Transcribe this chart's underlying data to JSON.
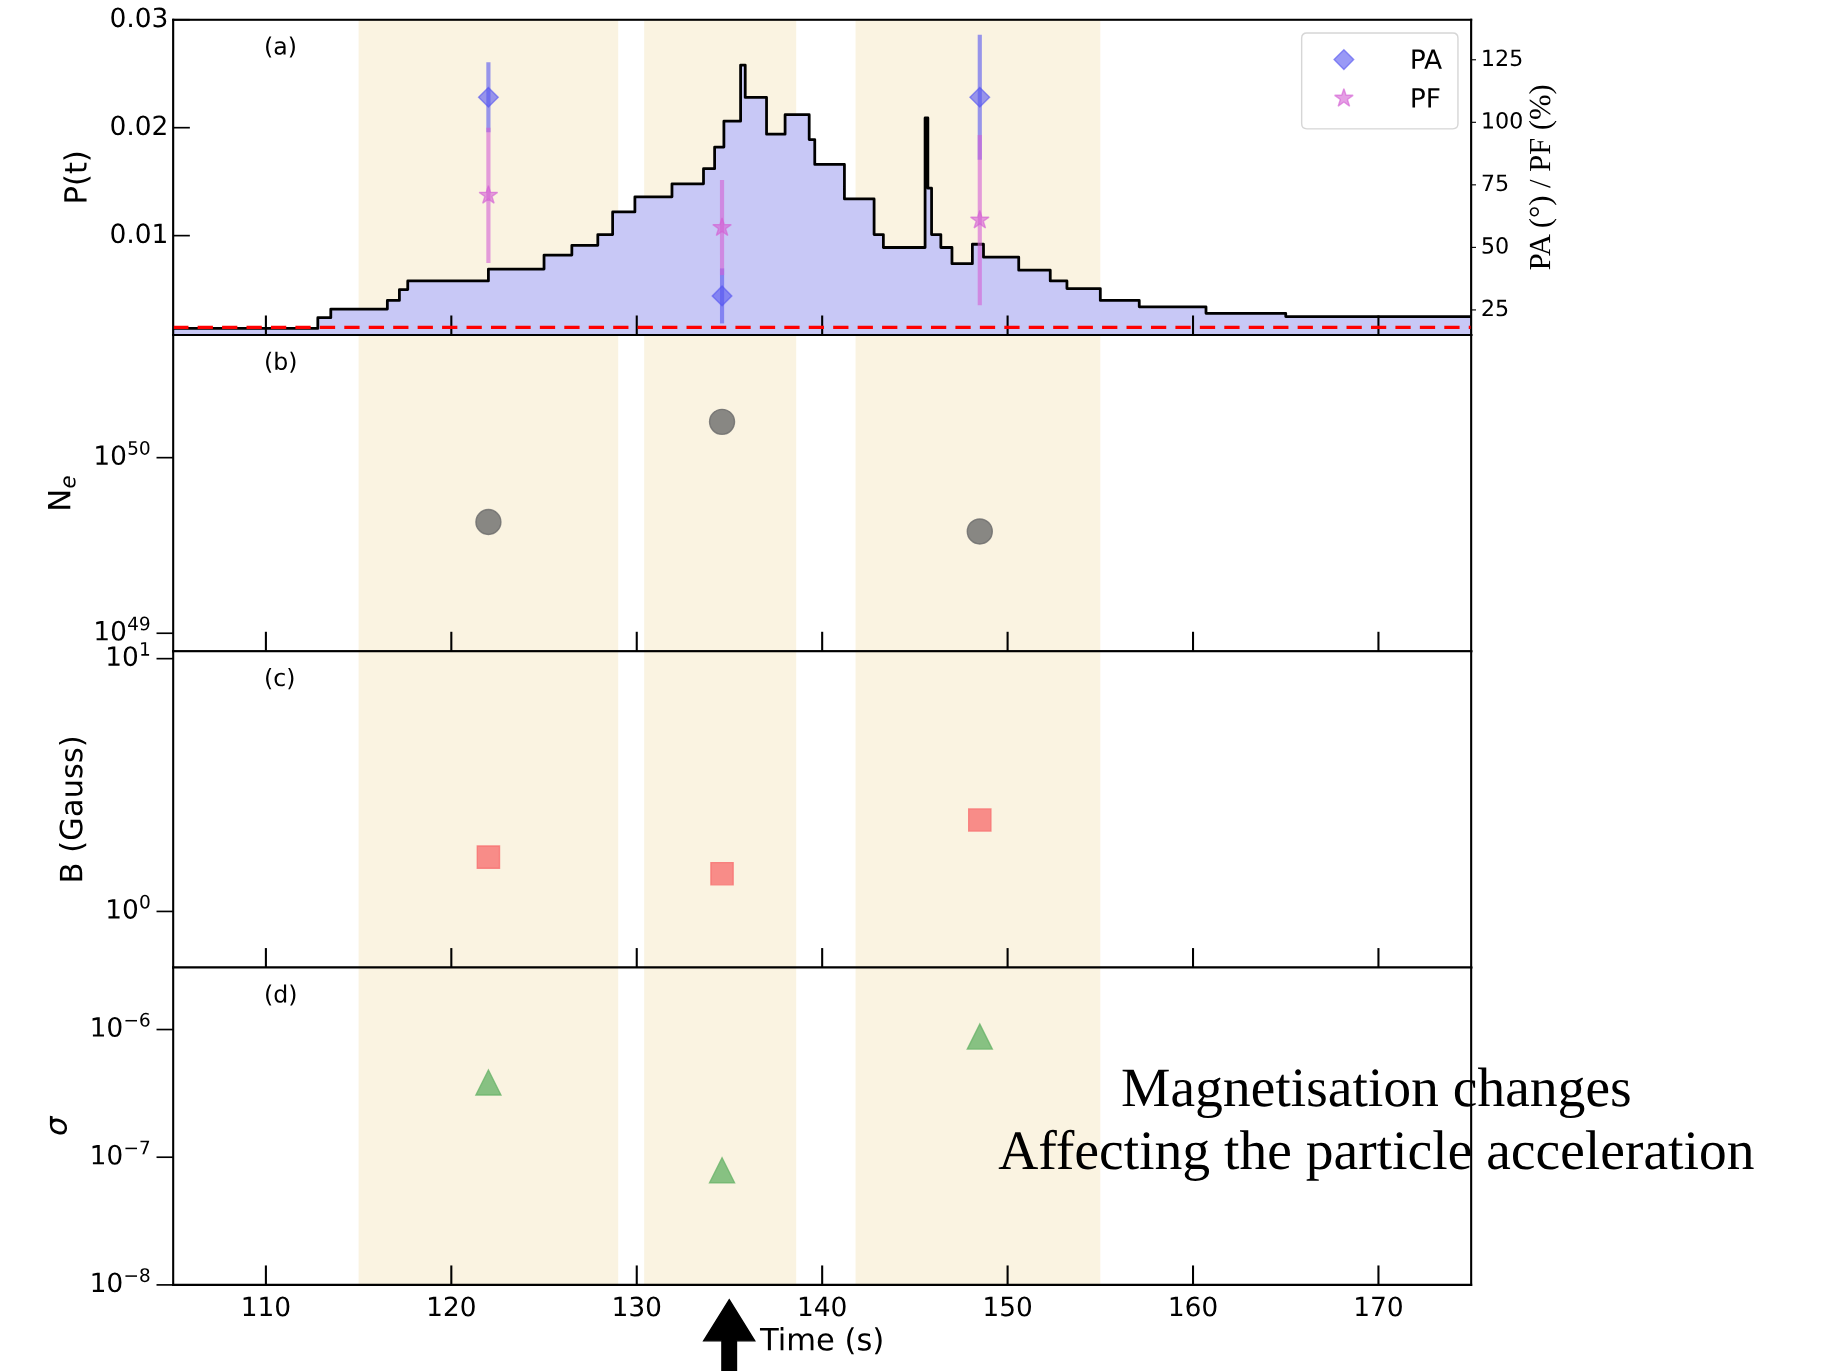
{
  "chart_data": [
    {
      "type": "step",
      "annotations": [
        "(a)"
      ],
      "ylabel": "P(t)",
      "y2label": "PA (°) / PF (%)",
      "xlim": [
        105,
        175
      ],
      "xticks": [
        110,
        120,
        130,
        140,
        150,
        160,
        170
      ],
      "ylim": [
        0.0008,
        0.03
      ],
      "yticks": [
        0.01,
        0.02,
        0.03
      ],
      "y2lim": [
        15,
        141
      ],
      "y2ticks": [
        25,
        50,
        75,
        100,
        125
      ],
      "tick_labels": "y",
      "legend": "top right",
      "bands": [
        {
          "axis": "x",
          "from": 115,
          "to": 129,
          "color": "#faf3e1"
        },
        {
          "axis": "x",
          "from": 130.4,
          "to": 138.6,
          "color": "#faf3e1"
        },
        {
          "axis": "x",
          "from": 141.8,
          "to": 155,
          "color": "#faf3e1"
        }
      ],
      "ref_lines": [
        {
          "axis": "y",
          "value": 0.0015,
          "color": "#ff0000",
          "line_style": "dashed"
        }
      ],
      "series": [
        {
          "type": "area",
          "color": "#c8c8f6",
          "x": [
            105,
            112.8,
            113.5,
            116.55,
            117.2,
            117.65,
            122.0,
            125.0,
            126.5,
            127.9,
            128.7,
            129.9,
            131.9,
            133.6,
            134.2,
            134.7,
            135.6,
            135.85,
            137.0,
            138.0,
            139.3,
            139.6,
            141.2,
            142.8,
            143.3,
            145.55,
            145.7,
            145.9,
            146.4,
            147.0,
            148.1,
            148.7,
            150.6,
            152.3,
            153.2,
            155.0,
            157.1,
            160.7,
            165.0,
            175
          ],
          "values": [
            0.0014,
            0.0024,
            0.0032,
            0.004,
            0.005,
            0.0058,
            0.0069,
            0.0082,
            0.0091,
            0.0101,
            0.0122,
            0.0136,
            0.0148,
            0.0162,
            0.0182,
            0.0206,
            0.0258,
            0.0228,
            0.0194,
            0.0212,
            0.0189,
            0.0166,
            0.0134,
            0.0101,
            0.0089,
            0.0209,
            0.0144,
            0.0101,
            0.0089,
            0.0074,
            0.0092,
            0.008,
            0.0068,
            0.0058,
            0.0051,
            0.004,
            0.0034,
            0.0028,
            0.0025,
            0.0025
          ]
        },
        {
          "type": "step",
          "color": "#000000",
          "x": [
            105,
            112.8,
            113.5,
            116.55,
            117.2,
            117.65,
            122.0,
            125.0,
            126.5,
            127.9,
            128.7,
            129.9,
            131.9,
            133.6,
            134.2,
            134.7,
            135.6,
            135.85,
            137.0,
            138.0,
            139.3,
            139.6,
            141.2,
            142.8,
            143.3,
            145.55,
            145.7,
            145.9,
            146.4,
            147.0,
            148.1,
            148.7,
            150.6,
            152.3,
            153.2,
            155.0,
            157.1,
            160.7,
            165.0,
            175
          ],
          "values": [
            0.0014,
            0.0024,
            0.0032,
            0.004,
            0.005,
            0.0058,
            0.0069,
            0.0082,
            0.0091,
            0.0101,
            0.0122,
            0.0136,
            0.0148,
            0.0162,
            0.0182,
            0.0206,
            0.0258,
            0.0228,
            0.0194,
            0.0212,
            0.0189,
            0.0166,
            0.0134,
            0.0101,
            0.0089,
            0.0209,
            0.0144,
            0.0101,
            0.0089,
            0.0074,
            0.0092,
            0.008,
            0.0068,
            0.0058,
            0.0051,
            0.004,
            0.0034,
            0.0028,
            0.0025,
            0.0025
          ]
        },
        {
          "type": "scatter",
          "name": "PA",
          "axis": "y2",
          "marker": "diamond",
          "color": "#5555f0",
          "x": [
            122.0,
            134.6,
            148.5
          ],
          "values": [
            110,
            30.6,
            110
          ],
          "errors": [
            14,
            11,
            25
          ]
        },
        {
          "type": "scatter",
          "name": "PF",
          "axis": "y2",
          "marker": "star",
          "color": "#d45fd4",
          "x": [
            122.0,
            134.6,
            148.5
          ],
          "values": [
            70.8,
            57.9,
            60.9
          ],
          "errors": [
            27,
            19,
            34
          ]
        }
      ]
    },
    {
      "type": "scatter",
      "annotations": [
        "(b)"
      ],
      "ylabel": "N$_{e}$",
      "xlim": [
        105,
        175
      ],
      "xticks": [
        110,
        120,
        130,
        140,
        150,
        160,
        170
      ],
      "log": true,
      "ylim": [
        7.9e+48,
        5e+50
      ],
      "yticks": [
        {
          "value": 1e+49,
          "label": "10$^{49}$"
        },
        {
          "value": 1e+50,
          "label": "10$^{50}$"
        }
      ],
      "tick_labels": "y",
      "marker": "circle",
      "bands": [
        {
          "axis": "x",
          "from": 115,
          "to": 129,
          "color": "#faf3e1"
        },
        {
          "axis": "x",
          "from": 130.4,
          "to": 138.6,
          "color": "#faf3e1"
        },
        {
          "axis": "x",
          "from": 141.8,
          "to": 155,
          "color": "#faf3e1"
        }
      ],
      "x": [
        122.0,
        134.6,
        148.5
      ],
      "values": [
        4.3e+49,
        1.6e+50,
        3.8e+49
      ],
      "color": "#6b6b6b"
    },
    {
      "type": "scatter",
      "annotations": [
        "(c)"
      ],
      "ylabel": "B (Gauss)",
      "xlim": [
        105,
        175
      ],
      "xticks": [
        110,
        120,
        130,
        140,
        150,
        160,
        170
      ],
      "log": true,
      "ylim": [
        0.6,
        10.7
      ],
      "yticks": [
        {
          "value": 1,
          "label": "10$^{0}$"
        },
        {
          "value": 10,
          "label": "10$^{1}$"
        }
      ],
      "tick_labels": "y",
      "marker": "square",
      "bands": [
        {
          "axis": "x",
          "from": 115,
          "to": 129,
          "color": "#faf3e1"
        },
        {
          "axis": "x",
          "from": 130.4,
          "to": 138.6,
          "color": "#faf3e1"
        },
        {
          "axis": "x",
          "from": 141.8,
          "to": 155,
          "color": "#faf3e1"
        }
      ],
      "x": [
        122.0,
        134.6,
        148.5
      ],
      "values": [
        1.64,
        1.41,
        2.3
      ],
      "color": "#f87272"
    },
    {
      "type": "scatter",
      "annotations": [
        "(d)",
        "Magnetisation changes\nAffecting the particle acceleration"
      ],
      "ylabel": "σ",
      "xlabel": "Time (s)",
      "xlim": [
        105,
        175
      ],
      "xticks": [
        110,
        120,
        130,
        140,
        150,
        160,
        170
      ],
      "log": true,
      "ylim": [
        1e-08,
        3.06e-06
      ],
      "yticks": [
        {
          "value": 1e-08,
          "label": "10$^{−8}$"
        },
        {
          "value": 1e-07,
          "label": "10$^{−7}$"
        },
        {
          "value": 1e-06,
          "label": "10$^{−6}$"
        }
      ],
      "marker": "triangle",
      "bands": [
        {
          "axis": "x",
          "from": 115,
          "to": 129,
          "color": "#faf3e1"
        },
        {
          "axis": "x",
          "from": 130.4,
          "to": 138.6,
          "color": "#faf3e1"
        },
        {
          "axis": "x",
          "from": 141.8,
          "to": 155,
          "color": "#faf3e1"
        }
      ],
      "x": [
        122.0,
        134.6,
        148.5
      ],
      "values": [
        3.85e-07,
        7.9e-08,
        8.8e-07
      ],
      "color": "#6ab46a"
    }
  ]
}
